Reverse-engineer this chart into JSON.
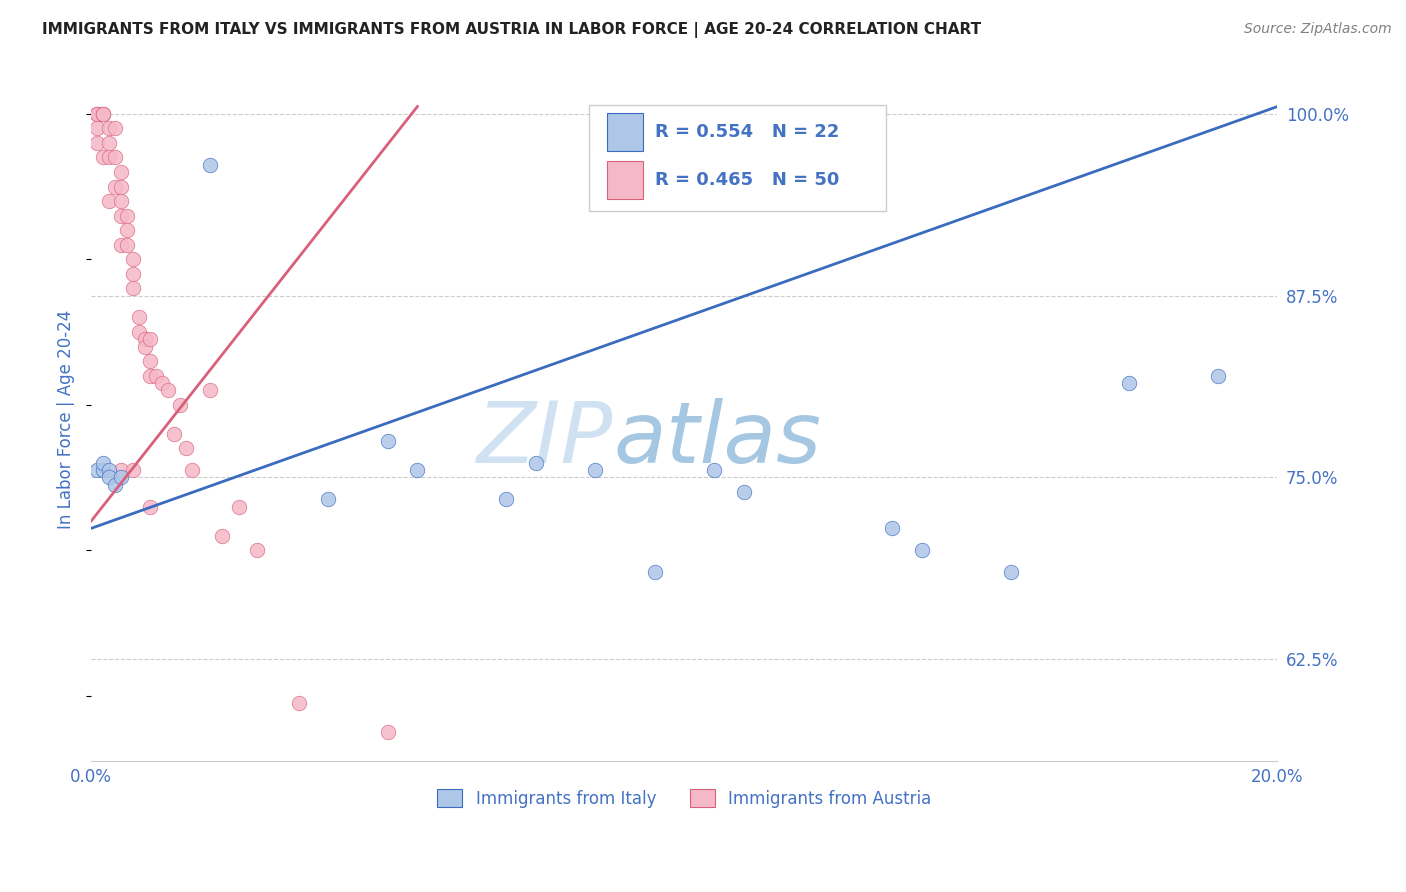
{
  "title": "IMMIGRANTS FROM ITALY VS IMMIGRANTS FROM AUSTRIA IN LABOR FORCE | AGE 20-24 CORRELATION CHART",
  "source": "Source: ZipAtlas.com",
  "ylabel": "In Labor Force | Age 20-24",
  "y_tick_labels": [
    "62.5%",
    "75.0%",
    "87.5%",
    "100.0%"
  ],
  "y_tick_values": [
    0.625,
    0.75,
    0.875,
    1.0
  ],
  "xlim": [
    0.0,
    0.2
  ],
  "ylim": [
    0.555,
    1.025
  ],
  "watermark_zip": "ZIP",
  "watermark_atlas": "atlas",
  "italy_label": "Immigrants from Italy",
  "austria_label": "Immigrants from Austria",
  "italy_R": "R = 0.554",
  "italy_N": "N = 22",
  "austria_R": "R = 0.465",
  "austria_N": "N = 50",
  "italy_color": "#aec6e8",
  "italy_line_color": "#3a6bbf",
  "austria_color": "#f5b8c8",
  "austria_line_color": "#d9607a",
  "legend_text_color": "#4472c4",
  "title_color": "#222222",
  "axis_label_color": "#4472c4",
  "grid_color": "#cccccc",
  "background_color": "#ffffff",
  "italy_x": [
    0.001,
    0.002,
    0.002,
    0.003,
    0.003,
    0.004,
    0.005,
    0.02,
    0.04,
    0.05,
    0.055,
    0.07,
    0.075,
    0.085,
    0.095,
    0.105,
    0.11,
    0.135,
    0.14,
    0.155,
    0.175,
    0.19
  ],
  "italy_y": [
    0.755,
    0.755,
    0.76,
    0.755,
    0.75,
    0.745,
    0.75,
    0.965,
    0.735,
    0.775,
    0.755,
    0.735,
    0.76,
    0.755,
    0.685,
    0.755,
    0.74,
    0.715,
    0.7,
    0.685,
    0.815,
    0.82
  ],
  "austria_x": [
    0.001,
    0.001,
    0.001,
    0.001,
    0.001,
    0.002,
    0.002,
    0.002,
    0.002,
    0.003,
    0.003,
    0.003,
    0.003,
    0.004,
    0.004,
    0.004,
    0.005,
    0.005,
    0.005,
    0.005,
    0.005,
    0.005,
    0.006,
    0.006,
    0.006,
    0.007,
    0.007,
    0.007,
    0.007,
    0.008,
    0.008,
    0.009,
    0.009,
    0.01,
    0.01,
    0.01,
    0.01,
    0.011,
    0.012,
    0.013,
    0.014,
    0.015,
    0.016,
    0.017,
    0.02,
    0.022,
    0.025,
    0.028,
    0.035,
    0.05
  ],
  "austria_y": [
    1.0,
    1.0,
    1.0,
    0.99,
    0.98,
    1.0,
    1.0,
    1.0,
    0.97,
    0.99,
    0.98,
    0.97,
    0.94,
    0.99,
    0.97,
    0.95,
    0.96,
    0.95,
    0.94,
    0.93,
    0.91,
    0.755,
    0.93,
    0.92,
    0.91,
    0.9,
    0.89,
    0.88,
    0.755,
    0.86,
    0.85,
    0.845,
    0.84,
    0.845,
    0.83,
    0.82,
    0.73,
    0.82,
    0.815,
    0.81,
    0.78,
    0.8,
    0.77,
    0.755,
    0.81,
    0.71,
    0.73,
    0.7,
    0.595,
    0.575
  ],
  "italy_trend_x": [
    0.0,
    0.2
  ],
  "italy_trend_y": [
    0.715,
    1.005
  ],
  "austria_trend_x": [
    0.0,
    0.055
  ],
  "austria_trend_y": [
    0.72,
    1.005
  ]
}
